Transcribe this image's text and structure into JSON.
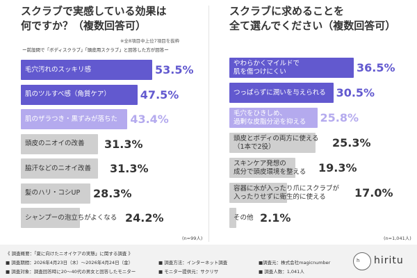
{
  "chart_data": [
    {
      "type": "bar",
      "title_lines": [
        "スクラブで実感している効果は",
        "何ですか？（複数回答可）"
      ],
      "note": "※全8項目中上位7項目を抜粋",
      "prenote": "ー前設問で「ボディスクラブ」「頭皮用スクラブ」と回答した方が回答ー",
      "categories": [
        [
          "毛穴汚れのスッキリ感"
        ],
        [
          "肌のツルすべ感（角質ケア）"
        ],
        [
          "肌のザラつき・黒ずみが落ちた"
        ],
        [
          "頭皮のニオイの改善"
        ],
        [
          "脇汗などのニオイ改善"
        ],
        [
          "髪のハリ・コシUP"
        ],
        [
          "シャンプーの泡立ちがよくなる"
        ]
      ],
      "values": [
        53.5,
        47.5,
        43.4,
        31.3,
        31.3,
        28.3,
        24.2
      ],
      "value_labels": [
        "53.5%",
        "47.5%",
        "43.4%",
        "31.3%",
        "31.3%",
        "28.3%",
        "24.2%"
      ],
      "n_label": "(n=99人)",
      "colors": [
        "#6259cf",
        "#6259cf",
        "#b4aaee",
        "#cfcfcf",
        "#cfcfcf",
        "#cfcfcf",
        "#cfcfcf"
      ],
      "label_colors": [
        "#ffffff",
        "#ffffff",
        "#ffffff",
        "#333333",
        "#333333",
        "#333333",
        "#333333"
      ],
      "value_colors": [
        "#6259cf",
        "#6259cf",
        "#b4aaee",
        "#333333",
        "#333333",
        "#333333",
        "#333333"
      ]
    },
    {
      "type": "bar",
      "title_lines": [
        "スクラブに求めることを",
        "全て選んでください（複数回答可）"
      ],
      "categories": [
        [
          "やわらかくマイルドで",
          "肌を傷つけにくい"
        ],
        [
          "つっぱらずに潤いを与えられる"
        ],
        [
          "毛穴をひきしめ、",
          "過剰な皮脂分泌を抑える"
        ],
        [
          "頭皮とボディの両方に使える",
          "（1本で2役）"
        ],
        [
          "スキンケア発想の",
          "成分で頭皮環境を整える"
        ],
        [
          "容器に水が入ったり爪にスクラブが",
          "入ったりせずに衛生的に使える"
        ],
        [
          "その他"
        ]
      ],
      "values": [
        36.5,
        30.5,
        25.8,
        25.3,
        19.3,
        17.0,
        2.1
      ],
      "value_labels": [
        "36.5%",
        "30.5%",
        "25.8%",
        "25.3%",
        "19.3%",
        "17.0%",
        "2.1%"
      ],
      "n_label": "(n=1,041人)",
      "colors": [
        "#6259cf",
        "#6259cf",
        "#b4aaee",
        "#cfcfcf",
        "#cfcfcf",
        "#cfcfcf",
        "#cfcfcf"
      ],
      "label_colors": [
        "#ffffff",
        "#ffffff",
        "#ffffff",
        "#333333",
        "#333333",
        "#333333",
        "#333333"
      ],
      "value_colors": [
        "#6259cf",
        "#6259cf",
        "#b4aaee",
        "#333333",
        "#333333",
        "#333333",
        "#333333"
      ]
    }
  ],
  "footer": {
    "line1": "《 調査概要：「夏に向けたニオイケアの実態」に関する調査 》",
    "period": "■ 調査期間：2026年4月23日（木）〜2026年4月24日（金）",
    "method": "■ 調査方法：インターネット調査",
    "org": "■調査元：株式会社magicnumber",
    "target": "■ 調査対象：調査回答時に20〜40代の男女と回答したモニター",
    "provider": "■ モニター提供元：サクリサ",
    "people": "■ 調査人数：1,041人",
    "logo_text": "h",
    "brand": "hiritu"
  }
}
